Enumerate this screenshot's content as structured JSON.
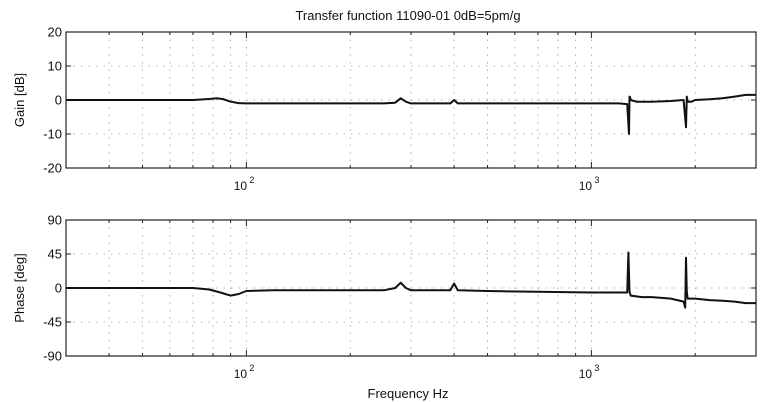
{
  "chart_data": [
    {
      "type": "line",
      "title": "Transfer function 11090-01   0dB=5pm/g",
      "ylabel": "Gain [dB]",
      "xlabel": "",
      "xscale": "log",
      "xlim": [
        30,
        3000
      ],
      "ylim": [
        -20,
        20
      ],
      "yticks": [
        20,
        10,
        0,
        -10,
        -20
      ],
      "xticks": [
        {
          "base": "10",
          "exp": "2",
          "value": 100
        },
        {
          "base": "10",
          "exp": "3",
          "value": 1000
        }
      ],
      "grid": true,
      "series": [
        {
          "x": [
            30,
            40,
            50,
            60,
            70,
            78,
            82,
            86,
            90,
            95,
            100,
            120,
            150,
            200,
            250,
            270,
            280,
            290,
            300,
            350,
            390,
            400,
            410,
            500,
            700,
            1000,
            1200,
            1270,
            1285,
            1290,
            1295,
            1300,
            1350,
            1400,
            1500,
            1700,
            1850,
            1880,
            1890,
            1900,
            1950,
            2000,
            2200,
            2400,
            2600,
            2800,
            3000
          ],
          "y": [
            0,
            0,
            0,
            0,
            0,
            0.3,
            0.5,
            0.2,
            -0.5,
            -0.9,
            -1,
            -1,
            -1,
            -1,
            -1,
            -0.8,
            0.5,
            -0.5,
            -1,
            -1,
            -1,
            0,
            -1,
            -1,
            -1,
            -1,
            -1,
            -1.2,
            -10,
            1,
            0.8,
            0,
            -0.5,
            -0.5,
            -0.5,
            -0.3,
            0,
            -8,
            1,
            -0.5,
            -0.5,
            0,
            0.2,
            0.5,
            1,
            1.5,
            1.5
          ]
        }
      ]
    },
    {
      "type": "line",
      "title": "",
      "ylabel": "Phase [deg]",
      "xlabel": "Frequency Hz",
      "xscale": "log",
      "xlim": [
        30,
        3000
      ],
      "ylim": [
        -90,
        90
      ],
      "yticks": [
        90,
        45,
        0,
        -45,
        -90
      ],
      "xticks": [
        {
          "base": "10",
          "exp": "2",
          "value": 100
        },
        {
          "base": "10",
          "exp": "3",
          "value": 1000
        }
      ],
      "grid": true,
      "series": [
        {
          "x": [
            30,
            40,
            50,
            60,
            70,
            78,
            84,
            90,
            95,
            100,
            120,
            150,
            200,
            250,
            270,
            280,
            290,
            300,
            350,
            390,
            400,
            410,
            500,
            700,
            1000,
            1200,
            1270,
            1280,
            1290,
            1300,
            1400,
            1500,
            1700,
            1850,
            1870,
            1880,
            1890,
            1900,
            2000,
            2200,
            2400,
            2600,
            2800,
            3000
          ],
          "y": [
            0,
            0,
            0,
            0,
            0,
            -2,
            -6,
            -10,
            -8,
            -4,
            -3,
            -3,
            -3,
            -3,
            0,
            7,
            0,
            -3,
            -3,
            -3,
            6,
            -3,
            -4,
            -5,
            -6,
            -6,
            -6,
            47,
            -5,
            -10,
            -12,
            -12,
            -14,
            -18,
            -26,
            40,
            -5,
            -14,
            -14,
            -16,
            -17,
            -18,
            -20,
            -20
          ]
        }
      ]
    }
  ]
}
